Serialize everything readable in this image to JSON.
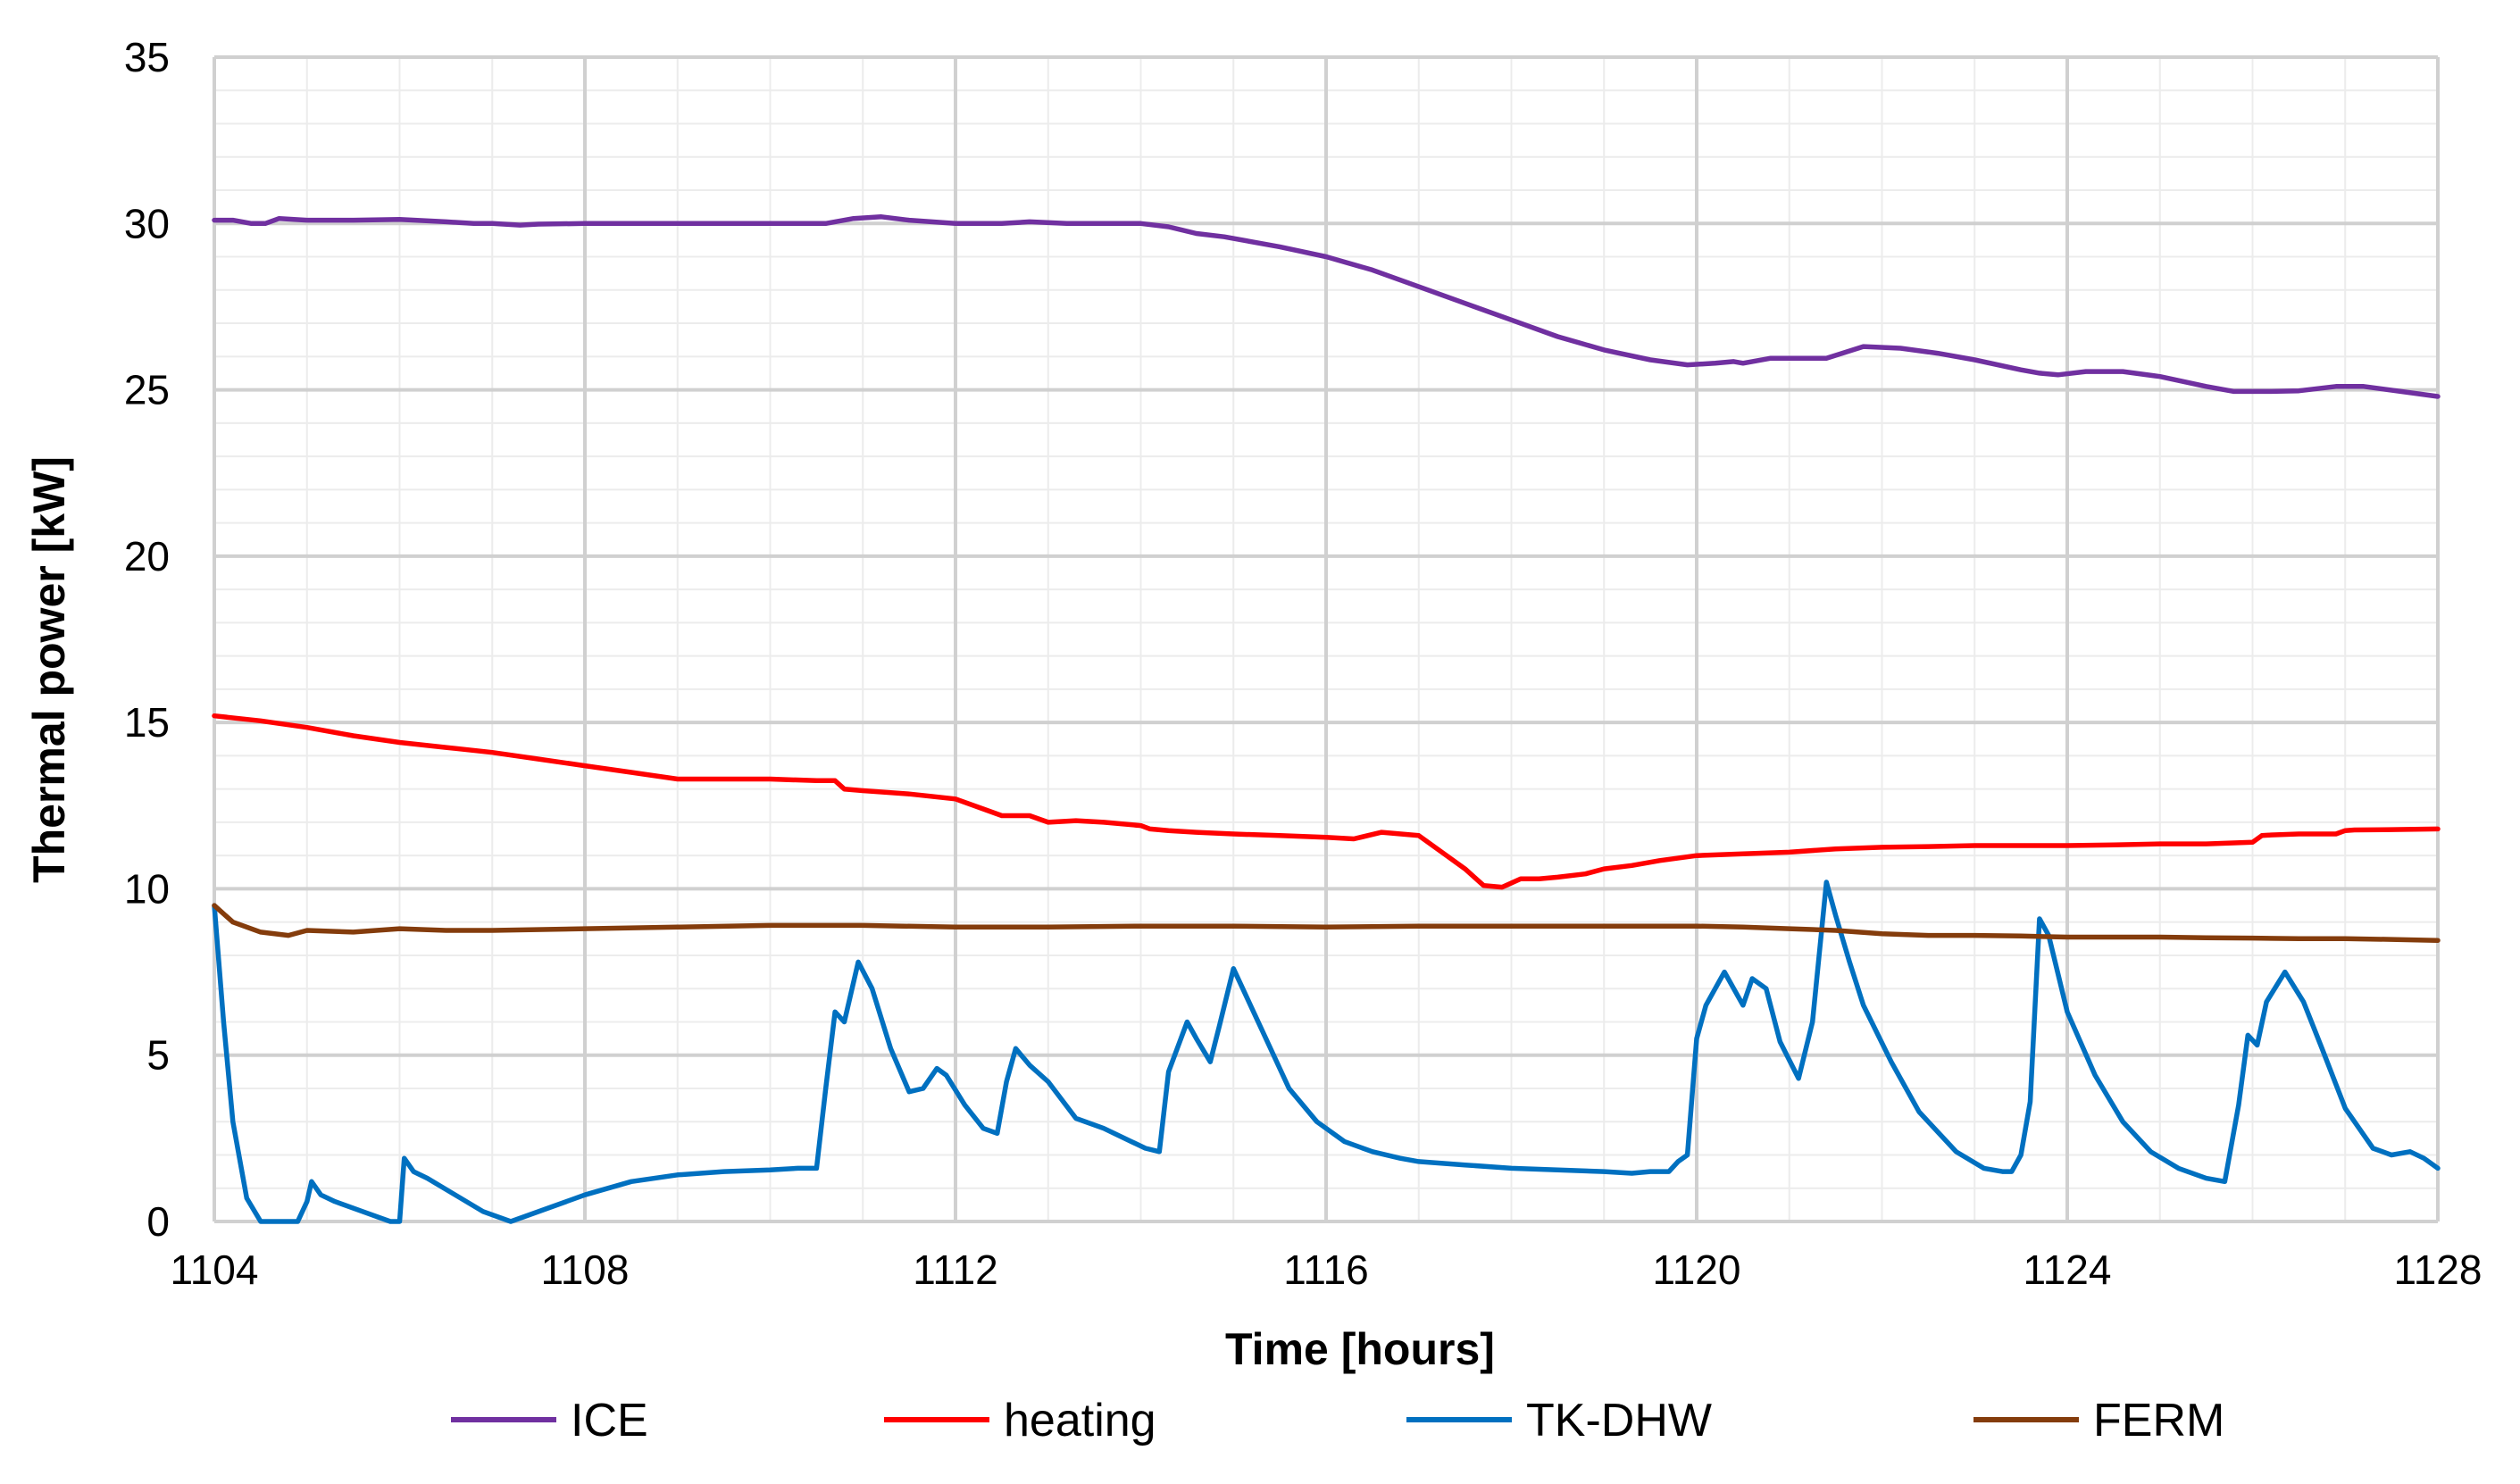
{
  "chart_data": {
    "type": "line",
    "title": "",
    "xlabel": "Time [hours]",
    "ylabel": "Thermal power [kW]",
    "xlim": [
      1104,
      1128
    ],
    "ylim": [
      0,
      35
    ],
    "xticks": [
      1104,
      1108,
      1112,
      1116,
      1120,
      1124,
      1128
    ],
    "yticks": [
      0,
      5,
      10,
      15,
      20,
      25,
      30,
      35
    ],
    "grid": true,
    "legend_position": "bottom",
    "series": [
      {
        "name": "ICE",
        "color": "#7030a0",
        "x": [
          1104,
          1104.2,
          1104.4,
          1104.55,
          1104.7,
          1105,
          1105.5,
          1106,
          1106.5,
          1106.8,
          1107,
          1107.3,
          1107.5,
          1108,
          1109,
          1110,
          1110.6,
          1110.9,
          1111.2,
          1111.5,
          1112,
          1112.5,
          1112.8,
          1113.2,
          1113.6,
          1114,
          1114.3,
          1114.6,
          1114.9,
          1115.5,
          1116,
          1116.5,
          1117,
          1117.5,
          1118,
          1118.5,
          1119,
          1119.5,
          1119.9,
          1120.2,
          1120.4,
          1120.5,
          1120.8,
          1121,
          1121.4,
          1121.8,
          1122.2,
          1122.6,
          1123,
          1123.5,
          1123.7,
          1123.9,
          1124.2,
          1124.6,
          1125,
          1125.5,
          1125.8,
          1126.2,
          1126.5,
          1126.9,
          1127.2,
          1127.6,
          1128
        ],
        "y": [
          30.1,
          30.1,
          30.0,
          30.0,
          30.15,
          30.1,
          30.1,
          30.12,
          30.05,
          30.0,
          30.0,
          29.95,
          29.98,
          30.0,
          30.0,
          30.0,
          30.0,
          30.15,
          30.2,
          30.1,
          30.0,
          30.0,
          30.05,
          30.0,
          30.0,
          30.0,
          29.9,
          29.7,
          29.6,
          29.3,
          29.0,
          28.6,
          28.1,
          27.6,
          27.1,
          26.6,
          26.2,
          25.9,
          25.75,
          25.8,
          25.85,
          25.8,
          25.95,
          25.95,
          25.95,
          26.3,
          26.25,
          26.1,
          25.9,
          25.6,
          25.5,
          25.45,
          25.55,
          25.55,
          25.4,
          25.1,
          24.95,
          24.95,
          24.97,
          25.1,
          25.1,
          24.95,
          24.8
        ]
      },
      {
        "name": "heating",
        "color": "#ff0000",
        "x": [
          1104,
          1104.5,
          1105,
          1105.5,
          1106,
          1106.5,
          1107,
          1107.5,
          1108,
          1108.5,
          1109,
          1109.5,
          1110,
          1110.5,
          1110.7,
          1110.8,
          1111,
          1111.5,
          1112,
          1112.3,
          1112.5,
          1112.8,
          1113,
          1113.3,
          1113.6,
          1114,
          1114.1,
          1114.3,
          1114.6,
          1115,
          1115.5,
          1116,
          1116.3,
          1116.6,
          1117,
          1117.3,
          1117.5,
          1117.7,
          1117.9,
          1118.1,
          1118.3,
          1118.5,
          1118.8,
          1119,
          1119.3,
          1119.6,
          1120,
          1120.5,
          1121,
          1121.5,
          1122,
          1122.5,
          1123,
          1123.5,
          1124,
          1124.5,
          1125,
          1125.5,
          1126,
          1126.1,
          1126.2,
          1126.5,
          1126.9,
          1127,
          1127.1,
          1127.5,
          1128
        ],
        "y": [
          15.2,
          15.05,
          14.85,
          14.6,
          14.4,
          14.25,
          14.1,
          13.9,
          13.7,
          13.5,
          13.3,
          13.3,
          13.3,
          13.25,
          13.25,
          13.0,
          12.95,
          12.85,
          12.7,
          12.4,
          12.2,
          12.2,
          12.0,
          12.05,
          12.0,
          11.9,
          11.8,
          11.75,
          11.7,
          11.65,
          11.6,
          11.55,
          11.5,
          11.7,
          11.6,
          11.0,
          10.6,
          10.1,
          10.05,
          10.3,
          10.3,
          10.35,
          10.45,
          10.6,
          10.7,
          10.85,
          11.0,
          11.05,
          11.1,
          11.2,
          11.25,
          11.27,
          11.3,
          11.3,
          11.3,
          11.32,
          11.35,
          11.35,
          11.4,
          11.6,
          11.62,
          11.65,
          11.65,
          11.75,
          11.77,
          11.78,
          11.8
        ]
      },
      {
        "name": "TK-DHW",
        "color": "#0070c0",
        "x": [
          1104,
          1104.1,
          1104.2,
          1104.35,
          1104.5,
          1104.6,
          1104.7,
          1104.9,
          1105,
          1105.05,
          1105.15,
          1105.3,
          1105.6,
          1105.9,
          1106,
          1106.05,
          1106.15,
          1106.3,
          1106.6,
          1106.9,
          1107.2,
          1107.6,
          1108,
          1108.5,
          1109,
          1109.5,
          1110,
          1110.3,
          1110.5,
          1110.6,
          1110.7,
          1110.8,
          1110.95,
          1111.1,
          1111.3,
          1111.5,
          1111.65,
          1111.8,
          1111.9,
          1112.1,
          1112.3,
          1112.45,
          1112.55,
          1112.65,
          1112.8,
          1113,
          1113.3,
          1113.6,
          1113.9,
          1114.05,
          1114.2,
          1114.3,
          1114.5,
          1114.6,
          1114.75,
          1114.85,
          1115,
          1115.3,
          1115.6,
          1115.9,
          1116.2,
          1116.5,
          1116.8,
          1117,
          1117.5,
          1118,
          1118.5,
          1119,
          1119.3,
          1119.5,
          1119.6,
          1119.7,
          1119.8,
          1119.9,
          1120,
          1120.1,
          1120.3,
          1120.5,
          1120.6,
          1120.75,
          1120.9,
          1121.1,
          1121.25,
          1121.4,
          1121.5,
          1121.65,
          1121.8,
          1122.1,
          1122.4,
          1122.8,
          1123.1,
          1123.3,
          1123.4,
          1123.5,
          1123.6,
          1123.7,
          1123.8,
          1124,
          1124.3,
          1124.6,
          1124.9,
          1125.2,
          1125.5,
          1125.7,
          1125.85,
          1125.95,
          1126.05,
          1126.15,
          1126.35,
          1126.55,
          1126.75,
          1127,
          1127.3,
          1127.5,
          1127.7,
          1127.85,
          1128
        ],
        "y": [
          9.5,
          6.0,
          3.0,
          0.7,
          0.0,
          0.0,
          0.0,
          0.0,
          0.6,
          1.2,
          0.8,
          0.6,
          0.3,
          0.0,
          0.0,
          1.9,
          1.5,
          1.3,
          0.8,
          0.3,
          0.0,
          0.4,
          0.8,
          1.2,
          1.4,
          1.5,
          1.55,
          1.6,
          1.6,
          4.0,
          6.3,
          6.0,
          7.8,
          7.0,
          5.2,
          3.9,
          4.0,
          4.6,
          4.4,
          3.5,
          2.8,
          2.65,
          4.2,
          5.2,
          4.7,
          4.2,
          3.1,
          2.8,
          2.4,
          2.2,
          2.1,
          4.5,
          6.0,
          5.5,
          4.8,
          5.9,
          7.6,
          5.8,
          4.0,
          3.0,
          2.4,
          2.1,
          1.9,
          1.8,
          1.7,
          1.6,
          1.55,
          1.5,
          1.45,
          1.5,
          1.5,
          1.5,
          1.8,
          2.0,
          5.5,
          6.5,
          7.5,
          6.5,
          7.3,
          7.0,
          5.4,
          4.3,
          6.0,
          10.2,
          9.2,
          7.8,
          6.5,
          4.8,
          3.3,
          2.1,
          1.6,
          1.5,
          1.5,
          2.0,
          3.6,
          9.1,
          8.6,
          6.3,
          4.4,
          3.0,
          2.1,
          1.6,
          1.3,
          1.2,
          3.5,
          5.6,
          5.3,
          6.6,
          7.5,
          6.6,
          5.2,
          3.4,
          2.2,
          2.0,
          2.1,
          1.9,
          1.6
        ]
      },
      {
        "name": "FERM",
        "color": "#843c0c",
        "x": [
          1104,
          1104.2,
          1104.5,
          1104.8,
          1105,
          1105.5,
          1106,
          1106.5,
          1107,
          1108,
          1109,
          1110,
          1111,
          1112,
          1113,
          1114,
          1115,
          1116,
          1117,
          1118,
          1119,
          1120,
          1120.5,
          1121,
          1121.5,
          1122,
          1122.5,
          1123,
          1123.5,
          1124,
          1124.5,
          1125,
          1125.5,
          1126,
          1126.5,
          1127,
          1127.5,
          1128
        ],
        "y": [
          9.5,
          9.0,
          8.7,
          8.6,
          8.75,
          8.7,
          8.8,
          8.75,
          8.75,
          8.8,
          8.85,
          8.9,
          8.9,
          8.85,
          8.85,
          8.88,
          8.88,
          8.85,
          8.88,
          8.88,
          8.88,
          8.88,
          8.85,
          8.8,
          8.75,
          8.65,
          8.6,
          8.6,
          8.58,
          8.55,
          8.55,
          8.55,
          8.53,
          8.52,
          8.5,
          8.5,
          8.48,
          8.45
        ]
      }
    ]
  }
}
